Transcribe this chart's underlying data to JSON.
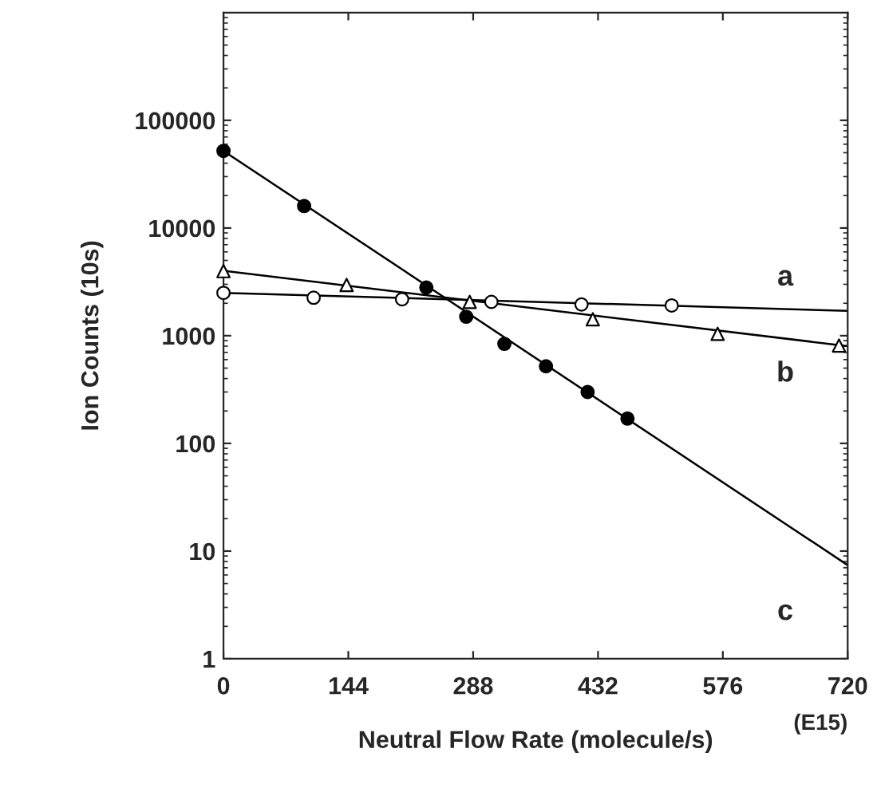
{
  "chart_data": {
    "type": "scatter",
    "xlabel": "Neutral Flow Rate (molecule/s)",
    "ylabel": "Ion Counts (10s)",
    "log": "y",
    "xlim": [
      0,
      720
    ],
    "ylim": [
      1,
      1000000
    ],
    "xticks": [
      0,
      144,
      288,
      432,
      576,
      720
    ],
    "yticks": [
      1,
      10,
      100,
      1000,
      10000,
      100000
    ],
    "grid": false,
    "legend": false,
    "series": [
      {
        "marker": "circle",
        "color": "#ffffff",
        "x": [
          0,
          104,
          206,
          309,
          413,
          517
        ],
        "values": [
          2500,
          2250,
          2180,
          2060,
          1950,
          1910
        ]
      },
      {
        "marker": "triangle",
        "color": "#ffffff",
        "x": [
          0,
          142,
          284,
          426,
          570,
          710
        ],
        "values": [
          3980,
          2960,
          2060,
          1420,
          1040,
          810
        ]
      },
      {
        "marker": "circle",
        "color": "#000000",
        "x": [
          0,
          93,
          234,
          280,
          324,
          372,
          420,
          466
        ],
        "values": [
          52000,
          16000,
          2800,
          1500,
          840,
          520,
          300,
          170
        ]
      },
      {
        "type": "line",
        "color": "#000000",
        "x": [
          0,
          720
        ],
        "values": [
          2500,
          1700
        ]
      },
      {
        "type": "line",
        "color": "#000000",
        "x": [
          0,
          720
        ],
        "values": [
          4000,
          800
        ]
      },
      {
        "type": "line",
        "color": "#000000",
        "x": [
          0,
          720
        ],
        "values": [
          52000,
          7.4
        ]
      }
    ],
    "annotations": [
      "a",
      "b",
      "c",
      "(E15)"
    ]
  }
}
